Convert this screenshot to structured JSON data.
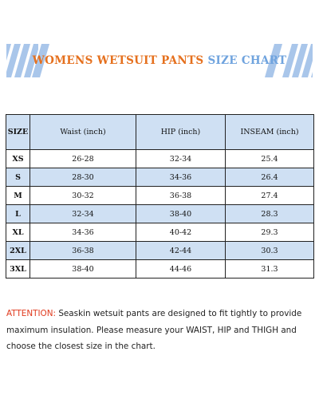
{
  "banner": {
    "title_part1": "WOMENS WETSUIT PANTS",
    "title_part2": "SIZE CHART",
    "colors": {
      "orange": "#e5701e",
      "blue": "#6fa3de",
      "bar_blue": "#a9c6ea"
    }
  },
  "table": {
    "headers": [
      "SIZE",
      "Waist (inch)",
      "HIP (inch)",
      "INSEAM (inch)"
    ],
    "rows": [
      [
        "XS",
        "26-28",
        "32-34",
        "25.4"
      ],
      [
        "S",
        "28-30",
        "34-36",
        "26.4"
      ],
      [
        "M",
        "30-32",
        "36-38",
        "27.4"
      ],
      [
        "L",
        "32-34",
        "38-40",
        "28.3"
      ],
      [
        "XL",
        "34-36",
        "40-42",
        "29.3"
      ],
      [
        "2XL",
        "36-38",
        "42-44",
        "30.3"
      ],
      [
        "3XL",
        "38-40",
        "44-46",
        "31.3"
      ]
    ],
    "colors": {
      "shaded": "#cfe0f3",
      "border": "#222222"
    }
  },
  "note": {
    "label": "ATTENTION:",
    "text": " Seaskin wetsuit pants are designed to fit tightly to provide maximum insulation. Please measure your WAIST, HIP and THIGH and choose the closest size in the chart.",
    "colors": {
      "label": "#e03a1e"
    }
  }
}
